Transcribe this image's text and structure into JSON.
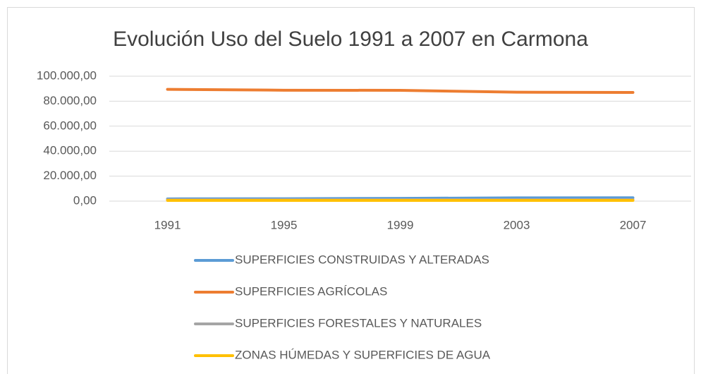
{
  "chart_data": {
    "type": "line",
    "title": "Evolución Uso del Suelo 1991 a 2007 en Carmona",
    "categories": [
      "1991",
      "1995",
      "1999",
      "2003",
      "2007"
    ],
    "series": [
      {
        "name": "SUPERFICIES CONSTRUIDAS Y ALTERADAS",
        "color": "#5b9bd5",
        "values": [
          1800,
          1900,
          2200,
          2600,
          2700
        ]
      },
      {
        "name": "SUPERFICIES AGRÍCOLAS",
        "color": "#ed7d31",
        "values": [
          89500,
          88800,
          88700,
          87200,
          87000
        ]
      },
      {
        "name": "SUPERFICIES FORESTALES Y NATURALES",
        "color": "#a5a5a5",
        "values": [
          1200,
          1200,
          1100,
          1100,
          1100
        ]
      },
      {
        "name": "ZONAS HÚMEDAS Y SUPERFICIES DE AGUA",
        "color": "#ffc000",
        "values": [
          600,
          600,
          600,
          600,
          600
        ]
      }
    ],
    "ylim": [
      0,
      100000
    ],
    "yticks": [
      {
        "value": 0,
        "label": "0,00"
      },
      {
        "value": 20000,
        "label": "20.000,00"
      },
      {
        "value": 40000,
        "label": "40.000,00"
      },
      {
        "value": 60000,
        "label": "60.000,00"
      },
      {
        "value": 80000,
        "label": "80.000,00"
      },
      {
        "value": 100000,
        "label": "100.000,00"
      }
    ],
    "grid": true,
    "legend": "bottom"
  }
}
